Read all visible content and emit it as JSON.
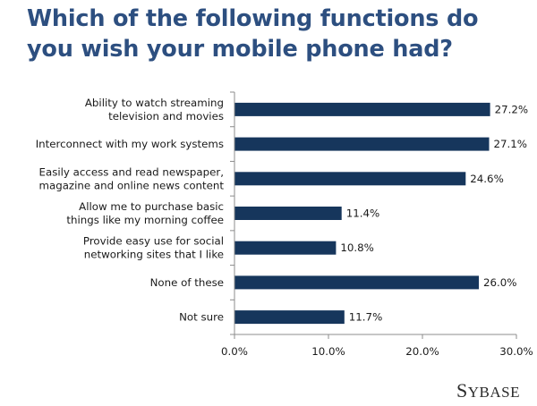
{
  "title": "Which of the following functions do you wish your mobile phone had?",
  "brand": {
    "first": "S",
    "rest": "YBASE"
  },
  "colors": {
    "bar": "#16365c",
    "title": "#2d4f80",
    "axis": "#8c8c8c"
  },
  "chart_data": {
    "type": "bar",
    "orientation": "horizontal",
    "categories": [
      [
        "Ability to watch streaming",
        "television and movies"
      ],
      [
        "Interconnect with my work systems"
      ],
      [
        "Easily access and read newspaper,",
        "magazine and online news content"
      ],
      [
        "Allow me to purchase basic",
        "things like my morning coffee"
      ],
      [
        "Provide easy use for social",
        "networking sites that I like"
      ],
      [
        "None of these"
      ],
      [
        "Not sure"
      ]
    ],
    "values": [
      27.2,
      27.1,
      24.6,
      11.4,
      10.8,
      26.0,
      11.7
    ],
    "value_labels": [
      "27.2%",
      "27.1%",
      "24.6%",
      "11.4%",
      "10.8%",
      "26.0%",
      "11.7%"
    ],
    "xlim": [
      0,
      30
    ],
    "ticks": [
      0,
      10,
      20,
      30
    ],
    "tick_labels": [
      "0.0%",
      "10.0%",
      "20.0%",
      "30.0%"
    ],
    "grid": false,
    "legend": "none"
  }
}
